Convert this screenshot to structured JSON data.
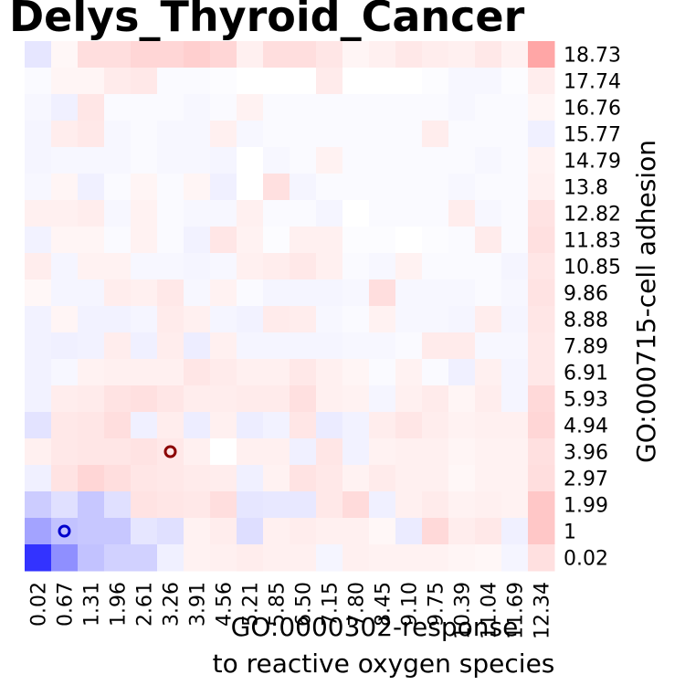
{
  "chart_data": {
    "type": "heatmap",
    "title": "Delys_Thyroid_Cancer",
    "xlabel_lines": [
      "GO:0000302-response",
      "to reactive oxygen species"
    ],
    "ylabel": "GO:000715-cell adhesion",
    "x_ticks": [
      "0.02",
      "0.67",
      "1.31",
      "1.96",
      "2.61",
      "3.26",
      "3.91",
      "4.56",
      "5.21",
      "5.85",
      "6.50",
      "7.15",
      "7.80",
      "8.45",
      "9.10",
      "9.75",
      "10.39",
      "11.04",
      "11.69",
      "12.34"
    ],
    "y_ticks": [
      "18.73",
      "17.74",
      "16.76",
      "15.77",
      "14.79",
      "13.8",
      "12.82",
      "11.83",
      "10.85",
      "9.86",
      "8.88",
      "7.89",
      "6.91",
      "5.93",
      "4.94",
      "3.96",
      "2.97",
      "1.99",
      "1",
      "0.02"
    ],
    "value_range": [
      -1,
      1
    ],
    "colormap": "bwr",
    "values": [
      [
        -0.1,
        0.03,
        0.13,
        0.13,
        0.16,
        0.16,
        0.19,
        0.16,
        0.06,
        0.13,
        0.13,
        0.1,
        0.04,
        0.06,
        0.09,
        0.07,
        0.06,
        0.09,
        0.05,
        0.35
      ],
      [
        -0.02,
        0.04,
        0.04,
        0.08,
        0.09,
        -0.02,
        -0.02,
        -0.01,
        0.0,
        0.0,
        0.0,
        0.08,
        0.0,
        0.0,
        0.0,
        -0.01,
        -0.03,
        -0.03,
        -0.01,
        0.07
      ],
      [
        -0.03,
        -0.06,
        0.1,
        -0.02,
        -0.02,
        -0.02,
        -0.03,
        -0.02,
        0.05,
        -0.02,
        -0.02,
        -0.02,
        -0.02,
        -0.02,
        -0.02,
        -0.02,
        -0.03,
        -0.02,
        -0.02,
        0.04
      ],
      [
        -0.04,
        0.07,
        0.09,
        -0.03,
        -0.02,
        -0.03,
        -0.03,
        0.06,
        -0.03,
        -0.02,
        -0.02,
        -0.02,
        -0.02,
        -0.02,
        -0.02,
        0.07,
        -0.02,
        -0.02,
        -0.02,
        -0.06
      ],
      [
        -0.04,
        -0.03,
        -0.03,
        -0.03,
        -0.02,
        -0.03,
        -0.03,
        -0.04,
        0.0,
        -0.03,
        -0.02,
        0.05,
        -0.02,
        -0.02,
        -0.02,
        -0.02,
        -0.02,
        -0.03,
        -0.02,
        0.05
      ],
      [
        -0.03,
        0.04,
        -0.06,
        -0.02,
        0.04,
        -0.02,
        0.04,
        -0.06,
        0.0,
        0.12,
        -0.04,
        -0.02,
        -0.02,
        -0.02,
        -0.02,
        -0.02,
        -0.03,
        -0.02,
        -0.02,
        0.06
      ],
      [
        0.06,
        0.06,
        0.07,
        -0.03,
        0.05,
        -0.02,
        -0.03,
        -0.03,
        0.06,
        -0.02,
        -0.02,
        -0.04,
        0.0,
        -0.02,
        -0.02,
        -0.02,
        0.07,
        -0.03,
        -0.02,
        0.11
      ],
      [
        -0.05,
        0.04,
        0.04,
        -0.02,
        0.05,
        -0.02,
        -0.05,
        0.1,
        0.05,
        -0.01,
        0.06,
        0.06,
        -0.01,
        -0.01,
        0.0,
        -0.01,
        -0.02,
        0.08,
        -0.02,
        0.12
      ],
      [
        0.07,
        -0.04,
        0.05,
        0.05,
        -0.03,
        -0.03,
        -0.04,
        -0.03,
        0.06,
        0.07,
        0.09,
        0.06,
        -0.02,
        -0.03,
        0.05,
        -0.02,
        -0.02,
        -0.02,
        -0.04,
        0.1
      ],
      [
        0.03,
        -0.04,
        -0.04,
        0.07,
        0.06,
        0.09,
        -0.03,
        0.05,
        -0.02,
        -0.04,
        -0.04,
        -0.04,
        -0.03,
        0.13,
        -0.03,
        -0.03,
        -0.03,
        -0.02,
        -0.03,
        0.11
      ],
      [
        -0.05,
        0.04,
        -0.05,
        -0.05,
        -0.04,
        0.08,
        0.06,
        -0.04,
        -0.05,
        0.08,
        0.07,
        -0.03,
        -0.02,
        0.05,
        -0.03,
        -0.03,
        -0.04,
        0.07,
        -0.04,
        0.1
      ],
      [
        -0.05,
        -0.06,
        -0.05,
        0.07,
        -0.06,
        0.07,
        -0.07,
        0.06,
        -0.04,
        -0.04,
        -0.04,
        -0.04,
        -0.03,
        -0.03,
        -0.02,
        0.08,
        0.08,
        -0.03,
        -0.03,
        0.09
      ],
      [
        -0.05,
        -0.03,
        0.05,
        0.06,
        0.06,
        0.06,
        0.1,
        0.08,
        0.06,
        0.06,
        0.09,
        0.06,
        0.04,
        -0.02,
        0.05,
        -0.02,
        -0.06,
        0.06,
        -0.04,
        0.09
      ],
      [
        -0.05,
        0.07,
        0.08,
        0.11,
        0.12,
        0.1,
        0.07,
        0.07,
        0.08,
        0.08,
        0.12,
        0.06,
        0.05,
        -0.04,
        0.06,
        0.08,
        0.04,
        0.07,
        -0.04,
        0.15
      ],
      [
        -0.11,
        0.09,
        0.1,
        0.13,
        -0.06,
        0.07,
        -0.07,
        0.06,
        -0.07,
        -0.05,
        0.1,
        -0.08,
        -0.05,
        0.07,
        0.1,
        0.07,
        0.05,
        0.06,
        0.06,
        0.16
      ],
      [
        0.06,
        0.09,
        0.1,
        0.1,
        0.11,
        0.09,
        0.06,
        0.0,
        0.06,
        0.06,
        -0.06,
        0.1,
        -0.05,
        0.05,
        0.06,
        0.06,
        0.04,
        0.05,
        0.05,
        0.12
      ],
      [
        -0.06,
        0.11,
        0.16,
        0.13,
        0.1,
        0.09,
        0.08,
        0.07,
        -0.06,
        0.05,
        0.11,
        0.09,
        0.05,
        0.08,
        0.06,
        0.06,
        0.03,
        0.05,
        0.05,
        0.13
      ],
      [
        -0.2,
        -0.12,
        -0.22,
        -0.12,
        0.11,
        0.1,
        0.09,
        0.13,
        -0.1,
        -0.09,
        -0.09,
        0.09,
        0.14,
        -0.06,
        0.06,
        0.08,
        0.05,
        0.06,
        0.05,
        0.22
      ],
      [
        -0.36,
        -0.24,
        -0.22,
        -0.22,
        -0.1,
        -0.12,
        0.05,
        0.07,
        -0.13,
        0.06,
        0.07,
        0.06,
        0.06,
        0.03,
        -0.08,
        0.15,
        0.07,
        0.09,
        -0.06,
        0.22
      ],
      [
        -0.8,
        -0.44,
        -0.24,
        -0.18,
        -0.18,
        -0.06,
        0.05,
        0.06,
        0.07,
        0.06,
        0.06,
        -0.04,
        0.06,
        0.05,
        0.05,
        0.05,
        0.04,
        0.03,
        -0.04,
        0.12
      ]
    ],
    "markers": [
      {
        "x": "3.26",
        "y": "3.96",
        "color": "#8b0000"
      },
      {
        "x": "0.67",
        "y": "1",
        "color": "#0000cc"
      }
    ]
  }
}
